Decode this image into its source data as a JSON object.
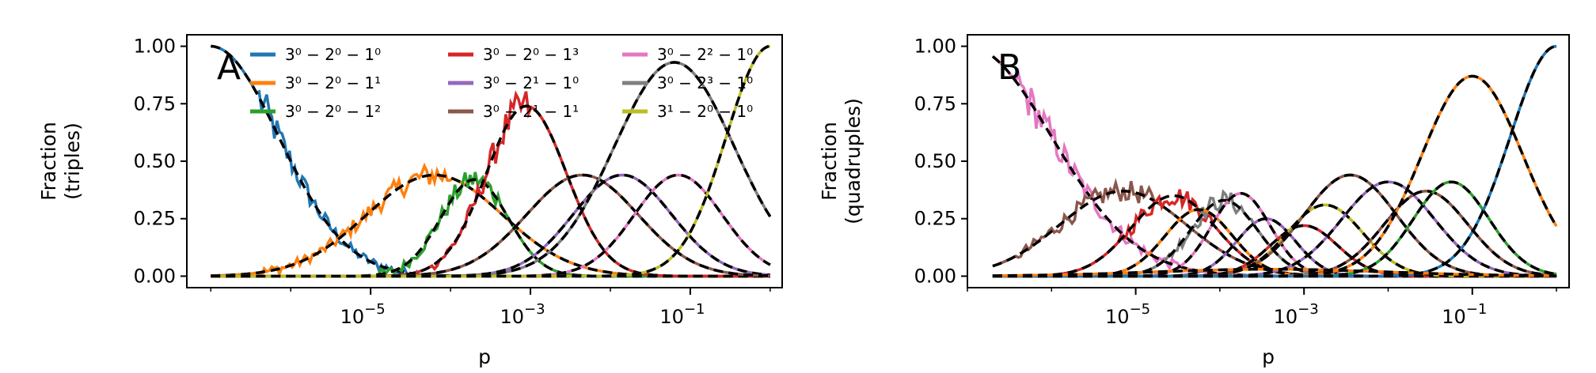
{
  "chart_data": [
    {
      "type": "line",
      "panel_label": "A",
      "ylabel_lines": [
        "Fraction",
        "(triples)"
      ],
      "xlabel": "p",
      "xscale": "log",
      "xlim_log10": [
        -7.3,
        0.15
      ],
      "ylim": [
        -0.05,
        1.05
      ],
      "x_ticks": [
        {
          "label_base": "10",
          "label_exp": "−5",
          "log10": -5
        },
        {
          "label_base": "10",
          "label_exp": "−3",
          "log10": -3
        },
        {
          "label_base": "10",
          "label_exp": "−1",
          "log10": -1
        }
      ],
      "y_ticks": [
        "0.00",
        "0.25",
        "0.50",
        "0.75",
        "1.00"
      ],
      "legend_placement": "top",
      "dashed_overlay_color": "#000000",
      "series": [
        {
          "name": "3⁰ − 2⁰ − 1⁰",
          "color": "#1f77b4",
          "peak_log10": -7.0,
          "width": 0.85,
          "peak": 1.0,
          "noisy": true,
          "noise_region": [
            -6.4,
            -4.3
          ]
        },
        {
          "name": "3⁰ − 2⁰ − 1¹",
          "color": "#ff7f0e",
          "peak_log10": -4.2,
          "width": 0.85,
          "peak": 0.44,
          "noisy": true,
          "noise_region": [
            -6.4,
            -4.0
          ]
        },
        {
          "name": "3⁰ − 2⁰ − 1²",
          "color": "#2ca02c",
          "peak_log10": -3.7,
          "width": 0.42,
          "peak": 0.42,
          "noisy": true,
          "noise_region": [
            -5.0,
            -3.4
          ]
        },
        {
          "name": "3⁰ − 2⁰ − 1³",
          "color": "#d62728",
          "peak_log10": -3.05,
          "width": 0.5,
          "peak": 0.74,
          "noisy": true,
          "noise_region": [
            -4.2,
            -3.0
          ]
        },
        {
          "name": "3⁰ − 2¹ − 1⁰",
          "color": "#9467bd",
          "peak_log10": -1.85,
          "width": 0.62,
          "peak": 0.44,
          "noisy": false
        },
        {
          "name": "3⁰ − 2¹ − 1¹",
          "color": "#8c564b",
          "peak_log10": -2.35,
          "width": 0.7,
          "peak": 0.44,
          "noisy": false
        },
        {
          "name": "3⁰ − 2² − 1⁰",
          "color": "#e377c2",
          "peak_log10": -1.15,
          "width": 0.55,
          "peak": 0.44,
          "noisy": false
        },
        {
          "name": "3⁰ − 2³ − 1⁰",
          "color": "#7f7f7f",
          "peak_log10": -1.2,
          "width": 0.75,
          "peak": 0.93,
          "noisy": false
        },
        {
          "name": "3¹ − 2⁰ − 1⁰",
          "color": "#bcbd22",
          "peak_log10": 0.0,
          "width": 0.55,
          "peak": 1.0,
          "noisy": false
        }
      ]
    },
    {
      "type": "line",
      "panel_label": "B",
      "ylabel_lines": [
        "Fraction",
        "(quadruples)"
      ],
      "xlabel": "p",
      "xscale": "log",
      "xlim_log10": [
        -7.0,
        0.15
      ],
      "ylim": [
        -0.05,
        1.05
      ],
      "x_ticks": [
        {
          "label_base": "10",
          "label_exp": "−5",
          "log10": -5
        },
        {
          "label_base": "10",
          "label_exp": "−3",
          "log10": -3
        },
        {
          "label_base": "10",
          "label_exp": "−1",
          "log10": -1
        }
      ],
      "y_ticks": [
        "0.00",
        "0.25",
        "0.50",
        "0.75",
        "1.00"
      ],
      "dashed_overlay_color": "#000000",
      "series": [
        {
          "color": "#e377c2",
          "peak_log10": -7.0,
          "width": 1.0,
          "peak": 1.0,
          "noisy": true,
          "noise_region": [
            -6.4,
            -4.5
          ]
        },
        {
          "color": "#8c564b",
          "peak_log10": -5.15,
          "width": 0.75,
          "peak": 0.37,
          "noisy": true,
          "noise_region": [
            -6.4,
            -4.8
          ]
        },
        {
          "color": "#d62728",
          "peak_log10": -4.55,
          "width": 0.5,
          "peak": 0.35,
          "noisy": true,
          "noise_region": [
            -5.2,
            -4.1
          ]
        },
        {
          "color": "#7f7f7f",
          "peak_log10": -3.95,
          "width": 0.4,
          "peak": 0.33,
          "noisy": true,
          "noise_region": [
            -4.6,
            -3.6
          ]
        },
        {
          "color": "#ff7f0e",
          "peak_log10": -4.25,
          "width": 0.4,
          "peak": 0.29,
          "noisy": false
        },
        {
          "color": "#e377c2",
          "peak_log10": -3.75,
          "width": 0.35,
          "peak": 0.36,
          "noisy": false
        },
        {
          "color": "#9467bd",
          "peak_log10": -3.45,
          "width": 0.35,
          "peak": 0.25,
          "noisy": false
        },
        {
          "color": "#d62728",
          "peak_log10": -3.0,
          "width": 0.4,
          "peak": 0.22,
          "noisy": false
        },
        {
          "color": "#bcbd22",
          "peak_log10": -2.75,
          "width": 0.45,
          "peak": 0.31,
          "noisy": false
        },
        {
          "color": "#8c564b",
          "peak_log10": -2.45,
          "width": 0.55,
          "peak": 0.44,
          "noisy": false
        },
        {
          "color": "#9467bd",
          "peak_log10": -2.0,
          "width": 0.55,
          "peak": 0.41,
          "noisy": false
        },
        {
          "color": "#8c564b",
          "peak_log10": -1.55,
          "width": 0.5,
          "peak": 0.37,
          "noisy": false
        },
        {
          "color": "#2ca02c",
          "peak_log10": -1.25,
          "width": 0.45,
          "peak": 0.41,
          "noisy": false
        },
        {
          "color": "#ff7f0e",
          "peak_log10": -1.0,
          "width": 0.6,
          "peak": 0.87,
          "noisy": false
        },
        {
          "color": "#1f77b4",
          "peak_log10": 0.0,
          "width": 0.55,
          "peak": 1.0,
          "noisy": false
        },
        {
          "color": "#ff7f0e",
          "peak_log10": -3.4,
          "width": 1.4,
          "peak": 0.03,
          "noisy": false
        }
      ]
    }
  ]
}
